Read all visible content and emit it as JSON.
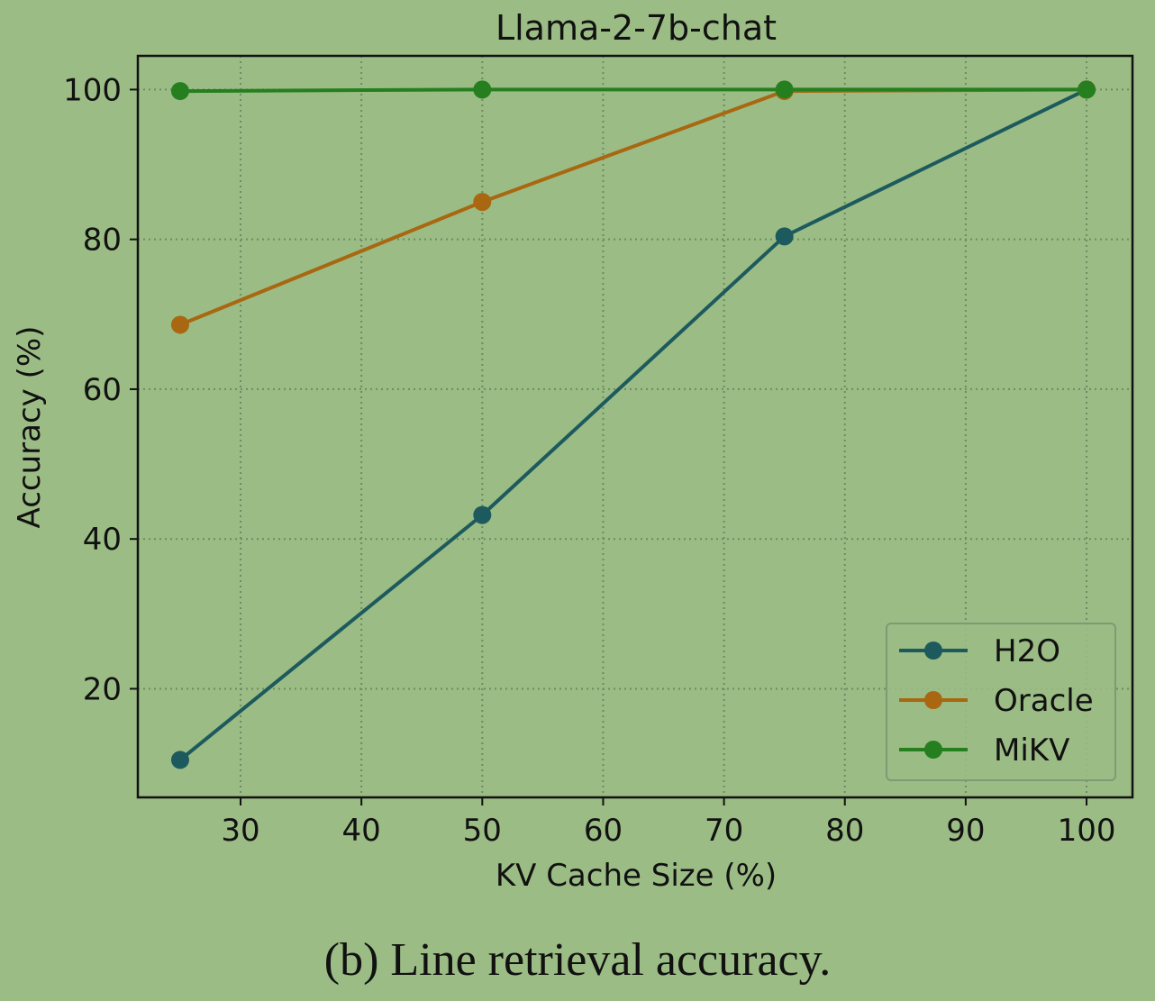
{
  "caption": "(b) Line retrieval accuracy.",
  "chart_data": {
    "type": "line",
    "title": "Llama-2-7b-chat",
    "xlabel": "KV Cache Size (%)",
    "ylabel": "Accuracy (%)",
    "xlim": [
      21.5,
      103.8
    ],
    "ylim": [
      5.5,
      104.5
    ],
    "xticks": [
      30,
      40,
      50,
      60,
      70,
      80,
      90,
      100
    ],
    "yticks": [
      20,
      40,
      60,
      80,
      100
    ],
    "xticklabels": [
      "30",
      "40",
      "50",
      "60",
      "70",
      "80",
      "90",
      "100"
    ],
    "yticklabels": [
      "20",
      "40",
      "60",
      "80",
      "100"
    ],
    "grid": true,
    "legend_position": "lower-right",
    "x": [
      25,
      50,
      75,
      100
    ],
    "series": [
      {
        "name": "H2O",
        "color": "#1d5a5e",
        "values": [
          10.5,
          43.2,
          80.4,
          100
        ]
      },
      {
        "name": "Oracle",
        "color": "#a86710",
        "values": [
          68.6,
          85.0,
          99.8,
          100
        ]
      },
      {
        "name": "MiKV",
        "color": "#267f1f",
        "values": [
          99.8,
          100,
          100,
          100
        ]
      }
    ],
    "colors": {
      "background": "#9bbc84",
      "axis": "#111111",
      "grid": "#6d8b63"
    }
  }
}
